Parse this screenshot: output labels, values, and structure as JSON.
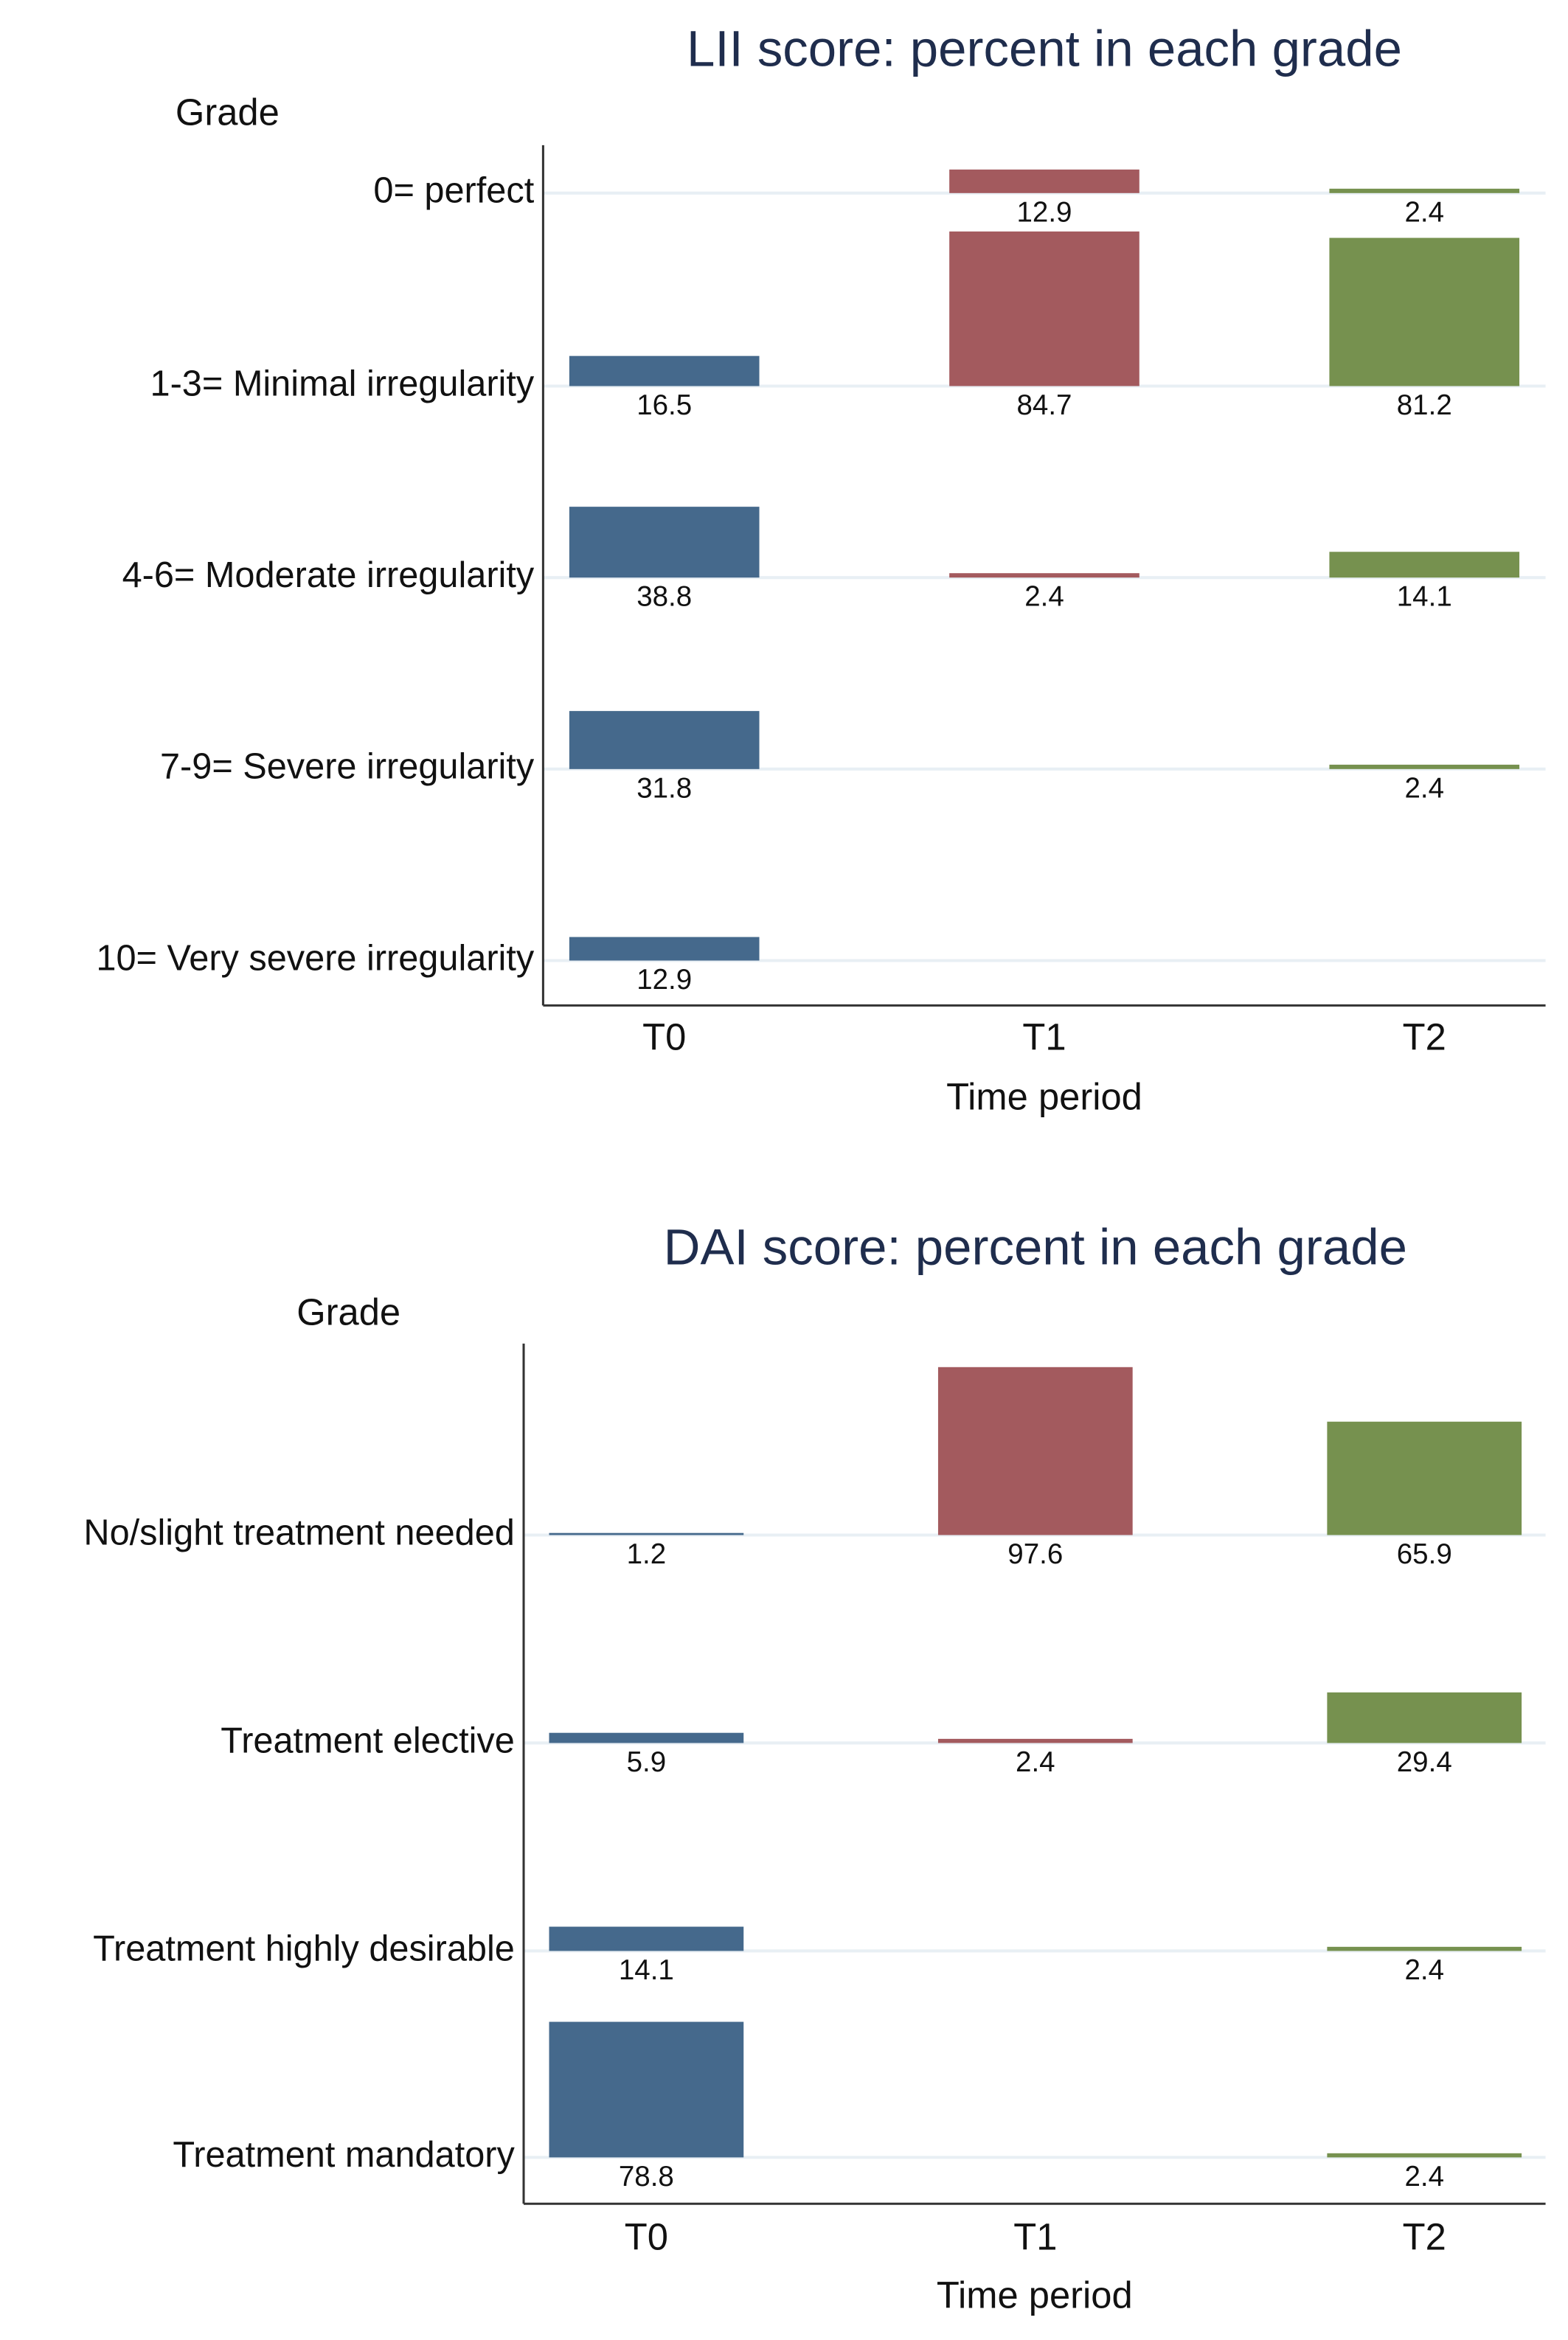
{
  "chart_data": [
    {
      "type": "bar",
      "title": "LII score: percent in each grade",
      "y_label": "Grade",
      "x_label": "Time period",
      "categories": [
        "0= perfect",
        "1-3= Minimal irregularity",
        "4-6= Moderate irregularity",
        "7-9= Severe irregularity",
        "10= Very severe irregularity"
      ],
      "series": [
        {
          "name": "T0",
          "color": "#45698c",
          "values": [
            null,
            16.5,
            38.8,
            31.8,
            12.9
          ]
        },
        {
          "name": "T1",
          "color": "#a35a5e",
          "values": [
            12.9,
            84.7,
            2.4,
            null,
            null
          ]
        },
        {
          "name": "T2",
          "color": "#76914f",
          "values": [
            2.4,
            81.2,
            14.1,
            2.4,
            null
          ]
        }
      ]
    },
    {
      "type": "bar",
      "title": "DAI score: percent in each grade",
      "y_label": "Grade",
      "x_label": "Time period",
      "categories": [
        "No/slight treatment needed",
        "Treatment elective",
        "Treatment highly desirable",
        "Treatment mandatory"
      ],
      "series": [
        {
          "name": "T0",
          "color": "#45698c",
          "values": [
            1.2,
            5.9,
            14.1,
            78.8
          ]
        },
        {
          "name": "T1",
          "color": "#a35a5e",
          "values": [
            97.6,
            2.4,
            null,
            null
          ]
        },
        {
          "name": "T2",
          "color": "#76914f",
          "values": [
            65.9,
            29.4,
            2.4,
            2.4
          ]
        }
      ]
    }
  ]
}
